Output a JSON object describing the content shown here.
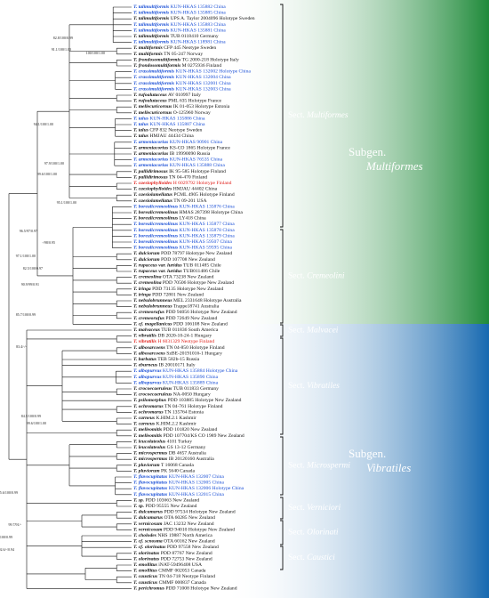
{
  "leaves": [
    {
      "taxon": "T. talimultiformis",
      "voucher": "KUN-HKAS 135882 China",
      "color": "#1a4fd6"
    },
    {
      "taxon": "T. talimultiformis",
      "voucher": "KUN-HKAS 135885 China",
      "color": "#1a4fd6"
    },
    {
      "taxon": "T. talimultiformis",
      "voucher": "UPS A. Taylor 2004096 Holotype Sweden",
      "color": "#111111"
    },
    {
      "taxon": "T. talimultiformis",
      "voucher": "KUN-HKAS 135883 China",
      "color": "#1a4fd6"
    },
    {
      "taxon": "T. talimultiformis",
      "voucher": "KUN-HKAS 135881 China",
      "color": "#1a4fd6"
    },
    {
      "taxon": "T. talimultiformis",
      "voucher": "TUB 0118410 Germany",
      "color": "#111111"
    },
    {
      "taxon": "T. talimultiformis",
      "voucher": "KUN-HKAS 118981 China",
      "color": "#1a4fd6"
    },
    {
      "taxon": "T. multiformis",
      "voucher": "CFP 445 Neotype Sweden",
      "color": "#111111"
    },
    {
      "taxon": "T. multiformis",
      "voucher": "TN 05-247 Norway",
      "color": "#111111"
    },
    {
      "taxon": "T. frondosomultiformis",
      "voucher": "TG 2000-218 Holotype Italy",
      "color": "#111111"
    },
    {
      "taxon": "T. frondosomultiformis",
      "voucher": "M 0275936 Finland",
      "color": "#111111"
    },
    {
      "taxon": "T. crassimultiformis",
      "voucher": "KUN-HKAS 132002 Holotype China",
      "color": "#1a4fd6"
    },
    {
      "taxon": "T. crassimultiformis",
      "voucher": "KUN-HKAS 132004 China",
      "color": "#1a4fd6"
    },
    {
      "taxon": "T. crassimultiformis",
      "voucher": "KUN-HKAS 132001 China",
      "color": "#1a4fd6"
    },
    {
      "taxon": "T. crassimultiformis",
      "voucher": "KUN-HKAS 132003 China",
      "color": "#1a4fd6"
    },
    {
      "taxon": "T. rufoalutaceus",
      "voucher": "AV 010997 Italy",
      "color": "#111111"
    },
    {
      "taxon": "T. rufoalutaceus",
      "voucher": "PML 635 Holotype France",
      "color": "#111111"
    },
    {
      "taxon": "T. mellecuricornus",
      "voucher": "IK 01-053 Holotype Estonia",
      "color": "#111111"
    },
    {
      "taxon": "T. mellecuricornus",
      "voucher": "O-125960 Norway",
      "color": "#111111"
    },
    {
      "taxon": "T. talus",
      "voucher": "KUN-HKAS 135886 China",
      "color": "#1a4fd6"
    },
    {
      "taxon": "T. talus",
      "voucher": "KUN-HKAS 135887 China",
      "color": "#1a4fd6"
    },
    {
      "taxon": "T. talus",
      "voucher": "CFP 832 Neotype Sweden",
      "color": "#111111"
    },
    {
      "taxon": "T. talus",
      "voucher": "HMJAU 44434 China",
      "color": "#111111"
    },
    {
      "taxon": "T. armeniacorius",
      "voucher": "KUN-HKAS 90901 China",
      "color": "#1a4fd6"
    },
    {
      "taxon": "T. armeniacorius",
      "voucher": "KS-CO 1865 Holotype France",
      "color": "#111111"
    },
    {
      "taxon": "T. armeniacorius",
      "voucher": "IB 19990090 Russia",
      "color": "#111111"
    },
    {
      "taxon": "T. armeniacorius",
      "voucher": "KUN-HKAS 76535 China",
      "color": "#1a4fd6"
    },
    {
      "taxon": "T. armeniacorius",
      "voucher": "KUN-HKAS 135888 China",
      "color": "#1a4fd6"
    },
    {
      "taxon": "T. pallidirimosus",
      "voucher": "IK 95-585 Holotype Finland",
      "color": "#111111"
    },
    {
      "taxon": "T. pallidirimosus",
      "voucher": "TN 04-470 Finland",
      "color": "#111111"
    },
    {
      "taxon": "T. caesiophylloides",
      "voucher": "H 6029792 Holotype Finland",
      "color": "#e0201b"
    },
    {
      "taxon": "T. caesiophylloides",
      "voucher": "HMJAU 44402 China",
      "color": "#111111"
    },
    {
      "taxon": "T. caesiolamellatus",
      "voucher": "PCML 4905 Holotype Finland",
      "color": "#111111"
    },
    {
      "taxon": "T. caesiolamellatus",
      "voucher": "TN 09-201 USA",
      "color": "#111111"
    },
    {
      "taxon": "T. borealicremeolinus",
      "voucher": "KUN-HKAS 135876 China",
      "color": "#1a4fd6"
    },
    {
      "taxon": "T. borealicremeolinus",
      "voucher": "HMAS 287398 Holotype China",
      "color": "#111111"
    },
    {
      "taxon": "T. borealicremeolinus",
      "voucher": "LY418 China",
      "color": "#111111"
    },
    {
      "taxon": "T. borealicremeolinus",
      "voucher": "KUN-HKAS 135877 China",
      "color": "#1a4fd6"
    },
    {
      "taxon": "T. borealicremeolinus",
      "voucher": "KUN-HKAS 135878 China",
      "color": "#1a4fd6"
    },
    {
      "taxon": "T. borealicremeolinus",
      "voucher": "KUN-HKAS 135879 China",
      "color": "#1a4fd6"
    },
    {
      "taxon": "T. borealicremeolinus",
      "voucher": "KUN-HKAS 59507 China",
      "color": "#1a4fd6"
    },
    {
      "taxon": "T. borealicremeolinus",
      "voucher": "KUN-HKAS 59595 China",
      "color": "#1a4fd6"
    },
    {
      "taxon": "T. dulciorum",
      "voucher": "PDD 78797 Holotype New Zealand",
      "color": "#111111"
    },
    {
      "taxon": "T. dulciorum",
      "voucher": "PDD 107708 New Zealand",
      "color": "#111111"
    },
    {
      "taxon": "T. rupaceus var. luridus",
      "voucher": "TUB 011485 Chile",
      "color": "#111111"
    },
    {
      "taxon": "T. rupaceus var. luridus",
      "voucher": "TUB011486 Chile",
      "color": "#111111"
    },
    {
      "taxon": "T. cremeolina",
      "voucher": "OTA 73238 New Zealand",
      "color": "#111111"
    },
    {
      "taxon": "T. cremeolina",
      "voucher": "PDD 70506 Holotype New Zealand",
      "color": "#111111"
    },
    {
      "taxon": "T. iringa",
      "voucher": "PDD 73135 Holotype New Zealand",
      "color": "#111111"
    },
    {
      "taxon": "T. iringa",
      "voucher": "PDD 72801 New Zealand",
      "color": "#111111"
    },
    {
      "taxon": "T. nebulobrunneus",
      "voucher": "MEL 2331648 Holotype Australia",
      "color": "#111111"
    },
    {
      "taxon": "T. nebulobrunneus",
      "voucher": "Trappe18741 Australia",
      "color": "#111111"
    },
    {
      "taxon": "T. cremeorufus",
      "voucher": "PDD 94056 Holotype New Zealand",
      "color": "#111111"
    },
    {
      "taxon": "T. cremeorufus",
      "voucher": "PDD 72649 New Zealand",
      "color": "#111111"
    },
    {
      "taxon": "T. cf. magellanicus",
      "voucher": "PDD 106108 New Zealand",
      "color": "#111111"
    },
    {
      "taxon": "T. malvaceus",
      "voucher": "TUB 011836 South America",
      "color": "#111111"
    },
    {
      "taxon": "T. vibratilis",
      "voucher": "DB 2020-10-24-1 Hungary",
      "color": "#111111"
    },
    {
      "taxon": "T. vibratilis",
      "voucher": "H 6031329 Neotype Finland",
      "color": "#e0201b"
    },
    {
      "taxon": "T. albosarcoens",
      "voucher": "TN 04-850 Holotype Finland",
      "color": "#111111"
    },
    {
      "taxon": "T. albosarcoens",
      "voucher": "SzBE-20191016-1 Hungary",
      "color": "#111111"
    },
    {
      "taxon": "T. barbatus",
      "voucher": "TEB 582b-15 Russia",
      "color": "#111111"
    },
    {
      "taxon": "T. eburneus",
      "voucher": "IB 20010171 Italy",
      "color": "#111111"
    },
    {
      "taxon": "T. albopurvus",
      "voucher": "KUN-HKAS 135884 Holotype China",
      "color": "#1a4fd6"
    },
    {
      "taxon": "T. albopurvus",
      "voucher": "KUN-HKAS 135890 China",
      "color": "#1a4fd6"
    },
    {
      "taxon": "T. albopurvus",
      "voucher": "KUN-HKAS 135889 China",
      "color": "#1a4fd6"
    },
    {
      "taxon": "T. crocoecaeruleus",
      "voucher": "TUB 011833 Germany",
      "color": "#111111"
    },
    {
      "taxon": "T. crocoecaeruleus",
      "voucher": "NA-0050 Hungary",
      "color": "#111111"
    },
    {
      "taxon": "T. psilomorphus",
      "voucher": "PDD 103885 Holotype New Zealand",
      "color": "#111111"
    },
    {
      "taxon": "T. ochromarus",
      "voucher": "TN 04-761 Holotype Finland",
      "color": "#111111"
    },
    {
      "taxon": "T. ochromarus",
      "voucher": "TN 135764 Estonia",
      "color": "#111111"
    },
    {
      "taxon": "T. carneus",
      "voucher": "K.HIM.2.1 Kashmir",
      "color": "#111111"
    },
    {
      "taxon": "T. carneus",
      "voucher": "K.HIM.2.2 Kashmir",
      "color": "#111111"
    },
    {
      "taxon": "T. melleomitis",
      "voucher": "PDD 101820 New Zealand",
      "color": "#111111"
    },
    {
      "taxon": "T. melleomitis",
      "voucher": "PDD 107704/KS CO 1989 New Zealand",
      "color": "#111111"
    },
    {
      "taxon": "T. leucolateolus",
      "voucher": "4101 Turkey",
      "color": "#111111"
    },
    {
      "taxon": "T. leucolateolus",
      "voucher": "GS 13-12 Germany",
      "color": "#111111"
    },
    {
      "taxon": "T. microspermus",
      "voucher": "DB 4657 Australia",
      "color": "#111111"
    },
    {
      "taxon": "T. microspermus",
      "voucher": "IB 20120160 Australia",
      "color": "#111111"
    },
    {
      "taxon": "T. pluviorum",
      "voucher": "T 16068 Canada",
      "color": "#111111"
    },
    {
      "taxon": "T. pluviorum",
      "voucher": "PK 5640 Canada",
      "color": "#111111"
    },
    {
      "taxon": "T. flavocupitatus",
      "voucher": "KUN-HKAS 132007 China",
      "color": "#1a4fd6"
    },
    {
      "taxon": "T. flavocupitatus",
      "voucher": "KUN-HKAS 132005 China",
      "color": "#1a4fd6"
    },
    {
      "taxon": "T. flavocupitatus",
      "voucher": "KUN-HKAS 132006 Holotype China",
      "color": "#1a4fd6"
    },
    {
      "taxon": "T. flavocupitatus",
      "voucher": "KUN-HKAS 132015 China",
      "color": "#1a4fd6"
    },
    {
      "taxon": "T. sp.",
      "voucher": "PDD 103663 New Zealand",
      "color": "#111111"
    },
    {
      "taxon": "T. sp.",
      "voucher": "PDD 95555 New Zealand",
      "color": "#111111"
    },
    {
      "taxon": "T. dulcamarus",
      "voucher": "PDD 97534 Holotype New Zealand",
      "color": "#111111"
    },
    {
      "taxon": "T. dulcamarus",
      "voucher": "OTA 60285 New Zealand",
      "color": "#111111"
    },
    {
      "taxon": "T. vernicosum",
      "voucher": "JAC 13232 New Zealand",
      "color": "#111111"
    },
    {
      "taxon": "T. vernicosum",
      "voucher": "PDD 94010 Holotype New Zealand",
      "color": "#111111"
    },
    {
      "taxon": "T. cholodes",
      "voucher": "NHS 19887 North America",
      "color": "#111111"
    },
    {
      "taxon": "T. cf. scnosma",
      "voucher": "OTA 60162 New Zealand",
      "color": "#111111"
    },
    {
      "taxon": "T. cf. olorinatus",
      "voucher": "PDD 97558 New Zealand",
      "color": "#111111"
    },
    {
      "taxon": "T. olorinatus",
      "voucher": "PDD 87767 New Zealand",
      "color": "#111111"
    },
    {
      "taxon": "T. olorinatus",
      "voucher": "PDD 72753 New Zealand",
      "color": "#111111"
    },
    {
      "taxon": "T. emollitus",
      "voucher": "iNAT-59496408 USA",
      "color": "#111111"
    },
    {
      "taxon": "T. emollitus",
      "voucher": "CMMF 002053 Canada",
      "color": "#111111"
    },
    {
      "taxon": "T. causticus",
      "voucher": "TN 04-718 Neotype Finland",
      "color": "#111111"
    },
    {
      "taxon": "T. causticus",
      "voucher": "CMMF 000837 Canada",
      "color": "#111111"
    },
    {
      "taxon": "T. perichromus",
      "voucher": "PDD 71008 Holotype New Zealand",
      "color": "#111111"
    }
  ],
  "sections": [
    {
      "prefix": "Sect.",
      "name": "Multiformes"
    },
    {
      "prefix": "Sect.",
      "name": "Cremeolini"
    },
    {
      "prefix": "Sect.",
      "name": "Malvacei"
    },
    {
      "prefix": "Sect.",
      "name": "Vibratiles"
    },
    {
      "prefix": "Sect.",
      "name": "Microspermi"
    },
    {
      "prefix": "Sect.",
      "name": "Verniciori"
    },
    {
      "prefix": "Sect.",
      "name": "Olorinati"
    },
    {
      "prefix": "Sect.",
      "name": "Caustici"
    }
  ],
  "subgenera": [
    {
      "prefix": "Subgen.",
      "name": "Multiformes",
      "color": "#1f8a3a"
    },
    {
      "prefix": "Subgen.",
      "name": "Vibratiles",
      "color": "#1769b0"
    }
  ],
  "supports": [
    "82.8/100/0.99",
    "91.1/100/1.00",
    "100/100/1.00",
    "94.1/100/1.00",
    "97.9/100/1.00",
    "99.6/100/1.00",
    "95.1/100/1.00",
    "96.5/97/0.97",
    "-/98/0.95",
    "97.1/100/1.00",
    "82.5/100/0.97",
    "90.9/99/0.91",
    "85.7/100/0.99",
    "83.4/-/-",
    "84.5/100/0.99",
    "99.6/100/1.00",
    "95.6/100/0.99",
    "99.7/91/-",
    "86.4/100/0.99",
    "92.6/-/0.94"
  ]
}
